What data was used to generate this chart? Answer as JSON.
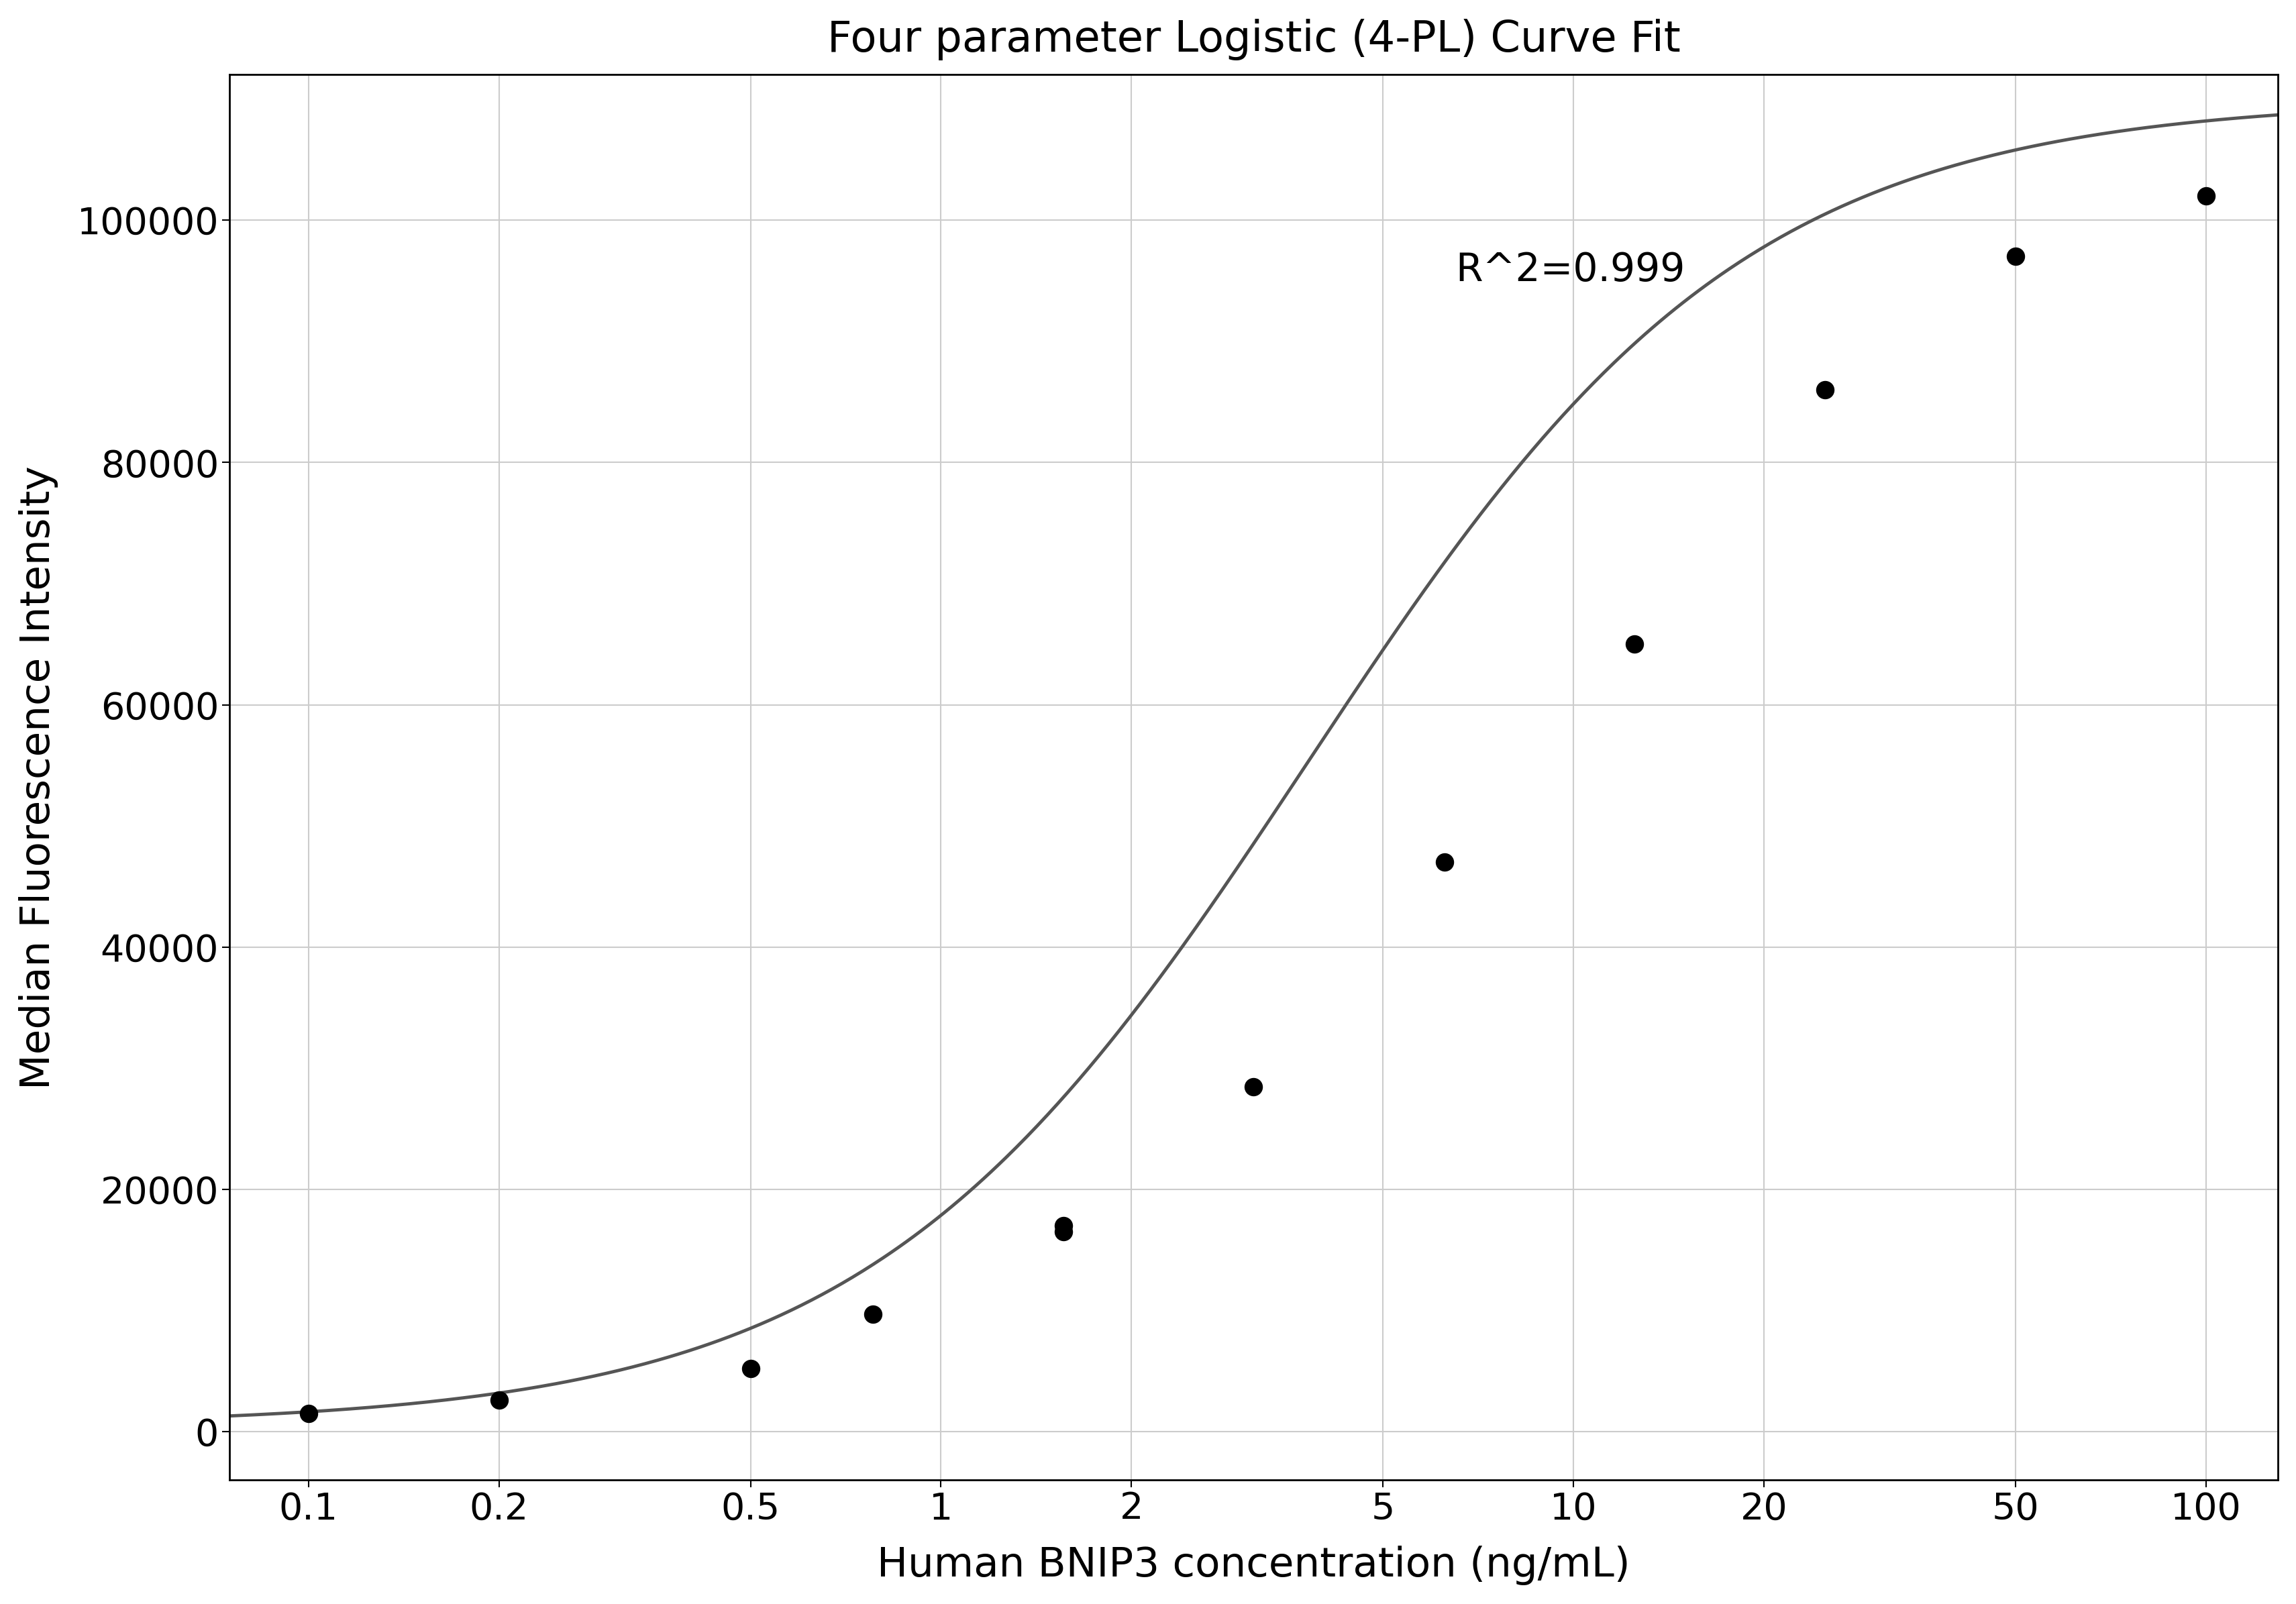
{
  "title": "Four parameter Logistic (4-PL) Curve Fit",
  "xlabel": "Human BNIP3 concentration (ng/mL)",
  "ylabel": "Median Fluorescence Intensity",
  "scatter_x": [
    0.1,
    0.2,
    0.5,
    0.78,
    1.56,
    1.56,
    3.12,
    6.25,
    12.5,
    25.0,
    50.0,
    100.0
  ],
  "scatter_y": [
    1500,
    2600,
    5200,
    9700,
    16500,
    17000,
    28500,
    47000,
    65000,
    86000,
    97000,
    102000
  ],
  "4pl_A": 500,
  "4pl_D": 110000,
  "4pl_C": 3.8,
  "4pl_B": 1.25,
  "r2_text": "R^2=0.999",
  "r2_x_data": 6.5,
  "r2_y_data": 95000,
  "xlim_log_min": -1.2,
  "xlim_log_max": 2.1,
  "xlim": [
    0.075,
    130
  ],
  "ylim": [
    -4000,
    112000
  ],
  "xticks": [
    0.1,
    0.2,
    0.5,
    1,
    2,
    5,
    10,
    20,
    50,
    100
  ],
  "xtick_labels": [
    "0.1",
    "0.2",
    "0.5",
    "1",
    "2",
    "5",
    "10",
    "20",
    "50",
    "100"
  ],
  "yticks": [
    0,
    20000,
    40000,
    60000,
    80000,
    100000
  ],
  "ytick_labels": [
    "0",
    "20000",
    "40000",
    "60000",
    "80000",
    "100000"
  ],
  "dot_color": "#000000",
  "curve_color": "#555555",
  "grid_color": "#cccccc",
  "background_color": "#ffffff",
  "title_fontsize": 46,
  "label_fontsize": 44,
  "tick_fontsize": 40,
  "annotation_fontsize": 42,
  "dot_size": 350,
  "linewidth": 3.5,
  "spine_color": "#000000",
  "spine_linewidth": 2.0
}
